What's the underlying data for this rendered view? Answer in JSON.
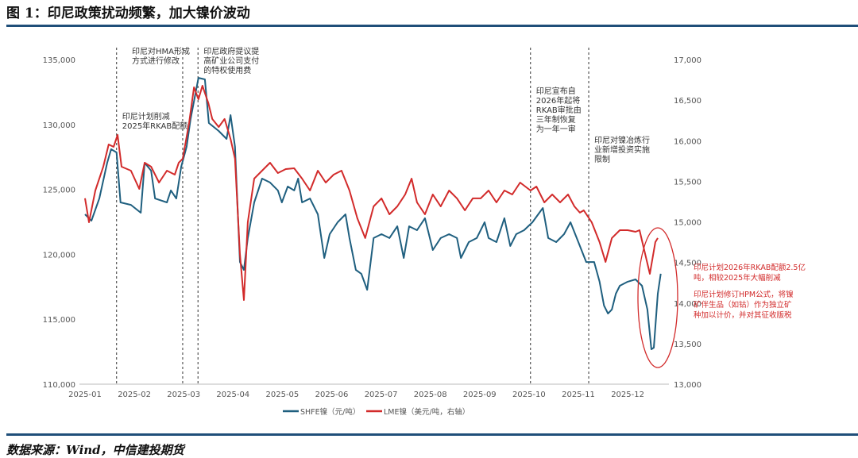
{
  "header": {
    "title": "图 1：印尼政策扰动频繁，加大镍价波动"
  },
  "footer": {
    "source": "数据来源：Wind，中信建投期货"
  },
  "chart_data": {
    "type": "line",
    "title": "图 1：印尼政策扰动频繁，加大镍价波动",
    "x_unit": "months since 2025-01-01",
    "x_ticks": [
      "2025-01",
      "2025-02",
      "2025-03",
      "2025-04",
      "2025-05",
      "2025-06",
      "2025-07",
      "2025-08",
      "2025-09",
      "2025-10",
      "2025-11",
      "2025-12"
    ],
    "y_left": {
      "range": [
        110000,
        135000
      ],
      "ticks": [
        "110,000",
        "115,000",
        "120,000",
        "125,000",
        "130,000",
        "135,000"
      ]
    },
    "y_right": {
      "range": [
        13000,
        17000
      ],
      "ticks": [
        "13,000",
        "13,500",
        "14,000",
        "14,500",
        "15,000",
        "15,500",
        "16,000",
        "16,500",
        "17,000"
      ]
    },
    "legend_position": "bottom",
    "series": [
      {
        "name": "SHFE镍（元/吨）",
        "axis": "left",
        "color": "#1f5f7f",
        "points": [
          [
            0,
            123080
          ],
          [
            0.13,
            122590
          ],
          [
            0.29,
            124300
          ],
          [
            0.45,
            127050
          ],
          [
            0.53,
            128090
          ],
          [
            0.64,
            127850
          ],
          [
            0.72,
            124000
          ],
          [
            0.93,
            123810
          ],
          [
            1.13,
            123200
          ],
          [
            1.21,
            127050
          ],
          [
            1.34,
            126440
          ],
          [
            1.42,
            124300
          ],
          [
            1.66,
            124000
          ],
          [
            1.74,
            124920
          ],
          [
            1.85,
            124300
          ],
          [
            1.95,
            126750
          ],
          [
            2.06,
            128280
          ],
          [
            2.14,
            130420
          ],
          [
            2.3,
            133590
          ],
          [
            2.43,
            133470
          ],
          [
            2.51,
            130110
          ],
          [
            2.71,
            129500
          ],
          [
            2.87,
            128890
          ],
          [
            2.95,
            130720
          ],
          [
            3.04,
            128280
          ],
          [
            3.14,
            119410
          ],
          [
            3.22,
            118800
          ],
          [
            3.3,
            121250
          ],
          [
            3.43,
            124000
          ],
          [
            3.59,
            125830
          ],
          [
            3.75,
            125530
          ],
          [
            3.91,
            124920
          ],
          [
            3.99,
            124000
          ],
          [
            4.11,
            125220
          ],
          [
            4.24,
            124920
          ],
          [
            4.32,
            125830
          ],
          [
            4.4,
            124000
          ],
          [
            4.56,
            124300
          ],
          [
            4.72,
            123080
          ],
          [
            4.85,
            119720
          ],
          [
            4.96,
            121550
          ],
          [
            5.12,
            122470
          ],
          [
            5.28,
            123080
          ],
          [
            5.36,
            121250
          ],
          [
            5.49,
            118800
          ],
          [
            5.6,
            118500
          ],
          [
            5.72,
            117270
          ],
          [
            5.85,
            121250
          ],
          [
            6.01,
            121550
          ],
          [
            6.17,
            121250
          ],
          [
            6.33,
            122160
          ],
          [
            6.46,
            119720
          ],
          [
            6.57,
            122160
          ],
          [
            6.73,
            121860
          ],
          [
            6.89,
            122780
          ],
          [
            7.05,
            120330
          ],
          [
            7.21,
            121250
          ],
          [
            7.38,
            121550
          ],
          [
            7.54,
            121250
          ],
          [
            7.62,
            119720
          ],
          [
            7.78,
            120940
          ],
          [
            7.94,
            121250
          ],
          [
            8.1,
            122470
          ],
          [
            8.18,
            121250
          ],
          [
            8.34,
            120940
          ],
          [
            8.5,
            122780
          ],
          [
            8.62,
            120640
          ],
          [
            8.74,
            121550
          ],
          [
            8.9,
            121860
          ],
          [
            9.07,
            122470
          ],
          [
            9.28,
            123570
          ],
          [
            9.39,
            121250
          ],
          [
            9.55,
            120940
          ],
          [
            9.71,
            121550
          ],
          [
            9.84,
            122470
          ],
          [
            10.0,
            120940
          ],
          [
            10.16,
            119410
          ],
          [
            10.32,
            119410
          ],
          [
            10.43,
            117890
          ],
          [
            10.52,
            116050
          ],
          [
            10.6,
            115440
          ],
          [
            10.68,
            115750
          ],
          [
            10.76,
            116970
          ],
          [
            10.84,
            117580
          ],
          [
            11.0,
            117890
          ],
          [
            11.16,
            118070
          ],
          [
            11.29,
            117580
          ],
          [
            11.4,
            115750
          ],
          [
            11.48,
            112690
          ],
          [
            11.53,
            112810
          ],
          [
            11.61,
            116970
          ],
          [
            11.67,
            118500
          ]
        ]
      },
      {
        "name": "LME镍（美元/吨，右轴）",
        "axis": "right",
        "color": "#d22b2b",
        "points": [
          [
            0,
            15290
          ],
          [
            0.08,
            14995
          ],
          [
            0.21,
            15386
          ],
          [
            0.37,
            15680
          ],
          [
            0.48,
            15954
          ],
          [
            0.58,
            15924
          ],
          [
            0.66,
            16071
          ],
          [
            0.74,
            15680
          ],
          [
            0.93,
            15631
          ],
          [
            1.1,
            15406
          ],
          [
            1.21,
            15729
          ],
          [
            1.34,
            15680
          ],
          [
            1.5,
            15484
          ],
          [
            1.66,
            15631
          ],
          [
            1.82,
            15582
          ],
          [
            1.9,
            15729
          ],
          [
            1.98,
            15778
          ],
          [
            2.11,
            16218
          ],
          [
            2.21,
            16658
          ],
          [
            2.3,
            16511
          ],
          [
            2.38,
            16677
          ],
          [
            2.5,
            16462
          ],
          [
            2.58,
            16267
          ],
          [
            2.71,
            16169
          ],
          [
            2.83,
            16267
          ],
          [
            2.95,
            16022
          ],
          [
            3.04,
            15778
          ],
          [
            3.14,
            14604
          ],
          [
            3.22,
            14037
          ],
          [
            3.3,
            14995
          ],
          [
            3.43,
            15533
          ],
          [
            3.59,
            15631
          ],
          [
            3.75,
            15729
          ],
          [
            3.91,
            15601
          ],
          [
            4.07,
            15650
          ],
          [
            4.24,
            15660
          ],
          [
            4.4,
            15533
          ],
          [
            4.56,
            15386
          ],
          [
            4.72,
            15631
          ],
          [
            4.88,
            15484
          ],
          [
            5.04,
            15582
          ],
          [
            5.2,
            15631
          ],
          [
            5.36,
            15386
          ],
          [
            5.52,
            15044
          ],
          [
            5.68,
            14800
          ],
          [
            5.85,
            15191
          ],
          [
            6.01,
            15289
          ],
          [
            6.17,
            15093
          ],
          [
            6.33,
            15191
          ],
          [
            6.49,
            15337
          ],
          [
            6.62,
            15533
          ],
          [
            6.73,
            15240
          ],
          [
            6.89,
            15093
          ],
          [
            7.05,
            15337
          ],
          [
            7.21,
            15191
          ],
          [
            7.38,
            15386
          ],
          [
            7.54,
            15289
          ],
          [
            7.7,
            15142
          ],
          [
            7.86,
            15289
          ],
          [
            8.02,
            15289
          ],
          [
            8.18,
            15386
          ],
          [
            8.34,
            15240
          ],
          [
            8.5,
            15386
          ],
          [
            8.66,
            15337
          ],
          [
            8.82,
            15484
          ],
          [
            9.03,
            15386
          ],
          [
            9.15,
            15435
          ],
          [
            9.31,
            15240
          ],
          [
            9.47,
            15337
          ],
          [
            9.63,
            15240
          ],
          [
            9.79,
            15337
          ],
          [
            9.92,
            15191
          ],
          [
            10.03,
            15113
          ],
          [
            10.11,
            15142
          ],
          [
            10.27,
            14995
          ],
          [
            10.43,
            14751
          ],
          [
            10.55,
            14506
          ],
          [
            10.68,
            14800
          ],
          [
            10.84,
            14897
          ],
          [
            11.0,
            14897
          ],
          [
            11.16,
            14878
          ],
          [
            11.24,
            14897
          ],
          [
            11.45,
            14359
          ],
          [
            11.56,
            14751
          ],
          [
            11.61,
            14800
          ]
        ]
      }
    ],
    "annotations": [
      {
        "x": 0.64,
        "lines": [
          "印尼计划削减",
          "2025年RKAB配额"
        ]
      },
      {
        "x": 1.98,
        "lines": [
          "印尼对HMA形成",
          "方式进行修改"
        ]
      },
      {
        "x": 2.29,
        "lines": [
          "印尼政府提议提",
          "高矿业公司支付",
          "的特权使用费"
        ]
      },
      {
        "x": 9.03,
        "lines": [
          "印尼宣布自",
          "2026年起将",
          "RKAB审批由",
          "三年制恢复",
          "为一年一审"
        ]
      },
      {
        "x": 10.21,
        "lines": [
          "印尼对镍冶炼行",
          "业新增投资实施",
          "限制"
        ]
      }
    ],
    "side_notes": [
      {
        "lines": [
          "印尼计划2026年RKAB配额2.5亿",
          "吨，相较2025年大幅削减"
        ],
        "color": "#d22b2b"
      },
      {
        "lines": [
          "印尼计划修订HPM公式，将镍",
          "矿伴生品（如钴）作为独立矿",
          "种加以计价，并对其征收版税"
        ],
        "color": "#d22b2b"
      }
    ]
  }
}
